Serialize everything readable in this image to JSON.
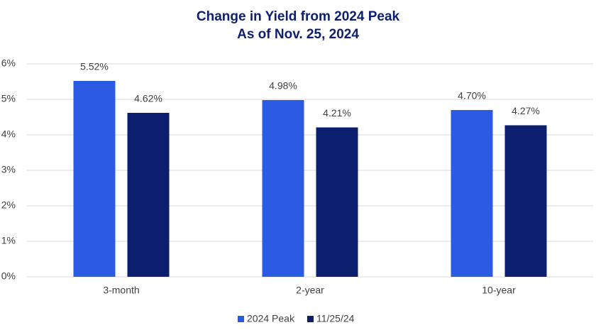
{
  "chart_data": {
    "type": "bar",
    "title": "Change in Yield from 2024 Peak",
    "subtitle": "As of Nov. 25, 2024",
    "categories": [
      "3-month",
      "2-year",
      "10-year"
    ],
    "series": [
      {
        "name": "2024 Peak",
        "color": "#2b5be3",
        "values": [
          5.52,
          4.98,
          4.7
        ],
        "value_labels": [
          "5.52%",
          "4.98%",
          "4.70%"
        ]
      },
      {
        "name": "11/25/24",
        "color": "#0c1f6f",
        "values": [
          4.62,
          4.21,
          4.27
        ],
        "value_labels": [
          "4.62%",
          "4.21%",
          "4.27%"
        ]
      }
    ],
    "ylim": [
      0,
      6
    ],
    "yticks": [
      {
        "value": 0,
        "label": "0%"
      },
      {
        "value": 1,
        "label": "1%"
      },
      {
        "value": 2,
        "label": "2%"
      },
      {
        "value": 3,
        "label": "3%"
      },
      {
        "value": 4,
        "label": "4%"
      },
      {
        "value": 5,
        "label": "5%"
      },
      {
        "value": 6,
        "label": "6%"
      }
    ],
    "grid": true,
    "legend": "bottom"
  }
}
